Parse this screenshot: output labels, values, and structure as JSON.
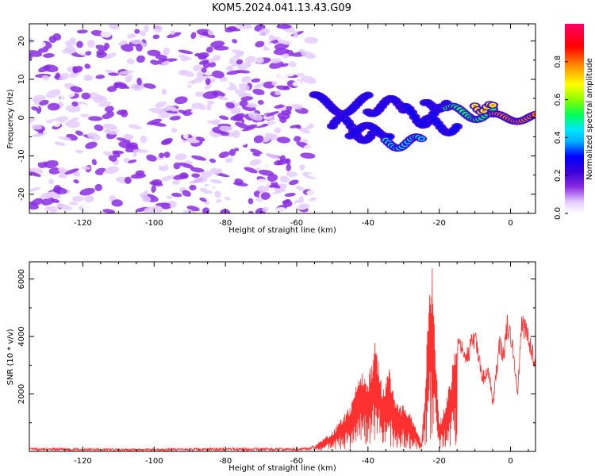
{
  "title": "KOM5.2024.041.13.43.G09",
  "chart_data": [
    {
      "type": "heatmap",
      "xlabel": "Height of straight line (km)",
      "ylabel": "Frequency (Hz)",
      "xlim": [
        -135,
        7
      ],
      "ylim": [
        -25,
        24.5
      ],
      "x_ticks": [
        -120,
        -100,
        -80,
        -60,
        -40,
        -20,
        0
      ],
      "y_ticks": [
        -20,
        -10,
        0,
        10,
        20
      ],
      "x_tick_labels": [
        "-120",
        "-100",
        "-80",
        "-60",
        "-40",
        "-20",
        "0"
      ],
      "y_tick_labels": [
        "-20",
        "-10",
        "0",
        "10",
        "20"
      ],
      "colorbar": {
        "label": "Normalized spectral amplitude",
        "range": [
          0,
          1
        ],
        "ticks": [
          0.0,
          0.2,
          0.4,
          0.6,
          0.8
        ],
        "tick_labels": [
          "0.0",
          "0.2",
          "0.4",
          "0.6",
          "0.8"
        ],
        "colors": [
          "#ffffff",
          "#e4ccff",
          "#8a2be2",
          "#3a00d8",
          "#0000ff",
          "#00e5ff",
          "#00ff55",
          "#8cff00",
          "#ffff00",
          "#ff8c00",
          "#ff0000",
          "#ff0066"
        ]
      },
      "noise_region": {
        "x": [
          -135,
          -55
        ],
        "y": [
          -25,
          24
        ],
        "amplitude": [
          0.05,
          0.25
        ]
      },
      "signal_segments": [
        {
          "x": [
            -55,
            -40
          ],
          "y": [
            1,
            6
          ],
          "amplitude": 0.3
        },
        {
          "x": [
            -50,
            -38
          ],
          "y": [
            -6,
            0
          ],
          "amplitude": 0.3
        },
        {
          "x": [
            -45,
            -34
          ],
          "y": [
            -5,
            -2
          ],
          "amplitude": 0.35
        },
        {
          "x": [
            -35,
            -25
          ],
          "y": [
            -8,
            -5
          ],
          "amplitude": 0.4
        },
        {
          "x": [
            -40,
            -30
          ],
          "y": [
            1,
            5
          ],
          "amplitude": 0.3
        },
        {
          "x": [
            -30,
            -20
          ],
          "y": [
            -2,
            3
          ],
          "amplitude": 0.35
        },
        {
          "x": [
            -25,
            -15
          ],
          "y": [
            -4,
            0
          ],
          "amplitude": 0.35
        },
        {
          "x": [
            -24,
            -18
          ],
          "y": [
            2,
            4
          ],
          "amplitude": 0.3
        },
        {
          "x": [
            -18,
            -5
          ],
          "y": [
            -0.5,
            3
          ],
          "amplitude": 0.55
        },
        {
          "x": [
            -10,
            -5
          ],
          "y": [
            1.5,
            3.5
          ],
          "amplitude": 0.75
        },
        {
          "x": [
            -5,
            7
          ],
          "y": [
            -1,
            1
          ],
          "amplitude": 0.9
        }
      ]
    },
    {
      "type": "line",
      "xlabel": "Height of straight line (km)",
      "ylabel": "SNR (10 * v/v)",
      "xlim": [
        -135,
        7
      ],
      "ylim": [
        0,
        6600
      ],
      "x_ticks": [
        -120,
        -100,
        -80,
        -60,
        -40,
        -20,
        0
      ],
      "y_ticks": [
        2000,
        4000,
        6000
      ],
      "x_tick_labels": [
        "-120",
        "-100",
        "-80",
        "-60",
        "-40",
        "-20",
        "0"
      ],
      "y_tick_labels": [
        "2000",
        "4000",
        "6000"
      ],
      "series": [
        {
          "color": "#ff3030",
          "x": [
            -135,
            -120,
            -100,
            -80,
            -60,
            -55,
            -50,
            -45,
            -42,
            -40,
            -38,
            -36,
            -34,
            -32,
            -30,
            -28,
            -26,
            -25,
            -24,
            -23,
            -22,
            -21,
            -20,
            -18,
            -15,
            -12,
            -10,
            -8,
            -6,
            -5,
            -3,
            -2,
            -1,
            0,
            1,
            2,
            3,
            5,
            7
          ],
          "y": [
            120,
            110,
            100,
            130,
            120,
            200,
            700,
            1600,
            2800,
            2500,
            4000,
            2200,
            3000,
            1700,
            1600,
            1300,
            700,
            300,
            2300,
            5200,
            6500,
            3500,
            1000,
            1800,
            4000,
            3700,
            4400,
            2800,
            3000,
            1800,
            4200,
            3600,
            4800,
            4500,
            3500,
            2200,
            4900,
            4400,
            3300
          ]
        }
      ]
    }
  ]
}
